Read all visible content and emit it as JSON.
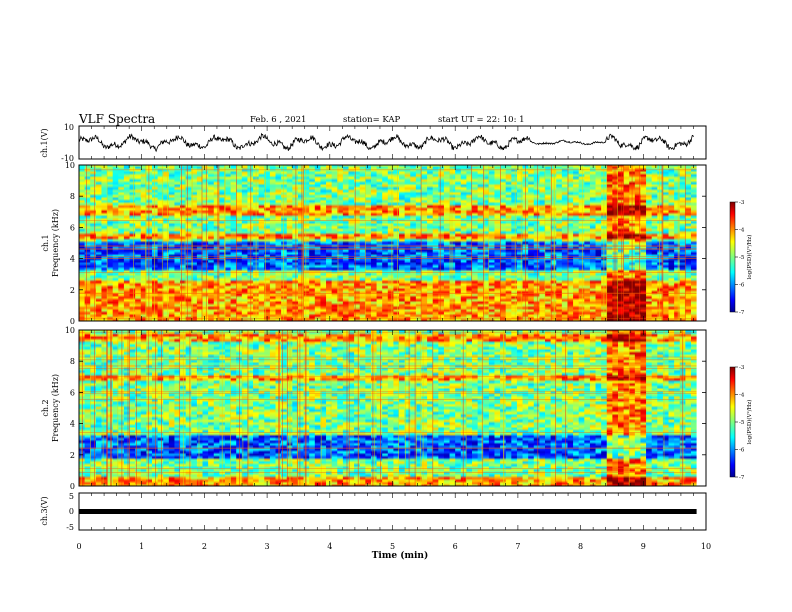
{
  "header": {
    "title": "VLF Spectra",
    "date": "Feb. 6 , 2021",
    "station": "station= KAP",
    "start_ut": "start UT =  22: 10: 1"
  },
  "colors": {
    "jet_low": "#00008f",
    "jet_mid": "#7fff7f",
    "jet_high": "#7f0000",
    "waveform": "#000000"
  },
  "chart_data": [
    {
      "type": "line",
      "panel": "ch1-waveform",
      "ylabel": "ch.1(V)",
      "ylim": [
        -10,
        10
      ],
      "yticks": [
        "10",
        "-10"
      ],
      "xlim": [
        0,
        10
      ],
      "description_series": "broadband waveform, amplitude roughly ±5 V, quieter between 7.2 and 8.4 min",
      "quiet_interval_min": [
        7.2,
        8.4
      ]
    },
    {
      "type": "heatmap",
      "panel": "ch1-spectrogram",
      "ylabel": "ch.1\nFrequency (kHz)",
      "ylabel_line1": "ch.1",
      "ylabel_line2": "Frequency (kHz)",
      "ylim": [
        0,
        10
      ],
      "yticks": [
        "0",
        "2",
        "4",
        "6",
        "8",
        "10"
      ],
      "xlim": [
        0,
        10
      ],
      "colorbar": {
        "label": "log(PSD)(V²/Hz)",
        "range": [
          -7,
          -3
        ],
        "ticks": [
          "-3",
          "-4",
          "-5",
          "-6",
          "-7"
        ]
      },
      "strong_band_kHz": [
        [
          0,
          2.5
        ],
        [
          5.2,
          5.6
        ],
        [
          6.8,
          7.4
        ]
      ],
      "weak_band_kHz": [
        [
          3.3,
          5.0
        ]
      ],
      "burst_interval_min": [
        8.45,
        9.05
      ]
    },
    {
      "type": "heatmap",
      "panel": "ch2-spectrogram",
      "ylabel_line1": "ch.2",
      "ylabel_line2": "Frequency (kHz)",
      "ylim": [
        0,
        10
      ],
      "yticks": [
        "0",
        "2",
        "4",
        "6",
        "8",
        "10"
      ],
      "xlim": [
        0,
        10
      ],
      "colorbar": {
        "label": "log(PSD)(V²/Hz)",
        "range": [
          -7,
          -3
        ],
        "ticks": [
          "-3",
          "-4",
          "-5",
          "-6",
          "-7"
        ]
      },
      "strong_band_kHz": [
        [
          0,
          0.6
        ],
        [
          9.3,
          9.8
        ],
        [
          6.8,
          7.0
        ]
      ],
      "weak_band_kHz": [
        [
          1.7,
          3.3
        ]
      ],
      "burst_interval_min": [
        8.45,
        9.05
      ]
    },
    {
      "type": "line",
      "panel": "ch3-waveform",
      "ylabel": "ch.3(V)",
      "ylim": [
        -5,
        5
      ],
      "yticks": [
        "5",
        "0",
        "-5"
      ],
      "xlim": [
        0,
        9.85
      ],
      "constant_value_V": 0
    }
  ],
  "xaxis": {
    "label": "Time (min)",
    "ticks": [
      "0",
      "1",
      "2",
      "3",
      "4",
      "5",
      "6",
      "7",
      "8",
      "9",
      "10"
    ]
  }
}
